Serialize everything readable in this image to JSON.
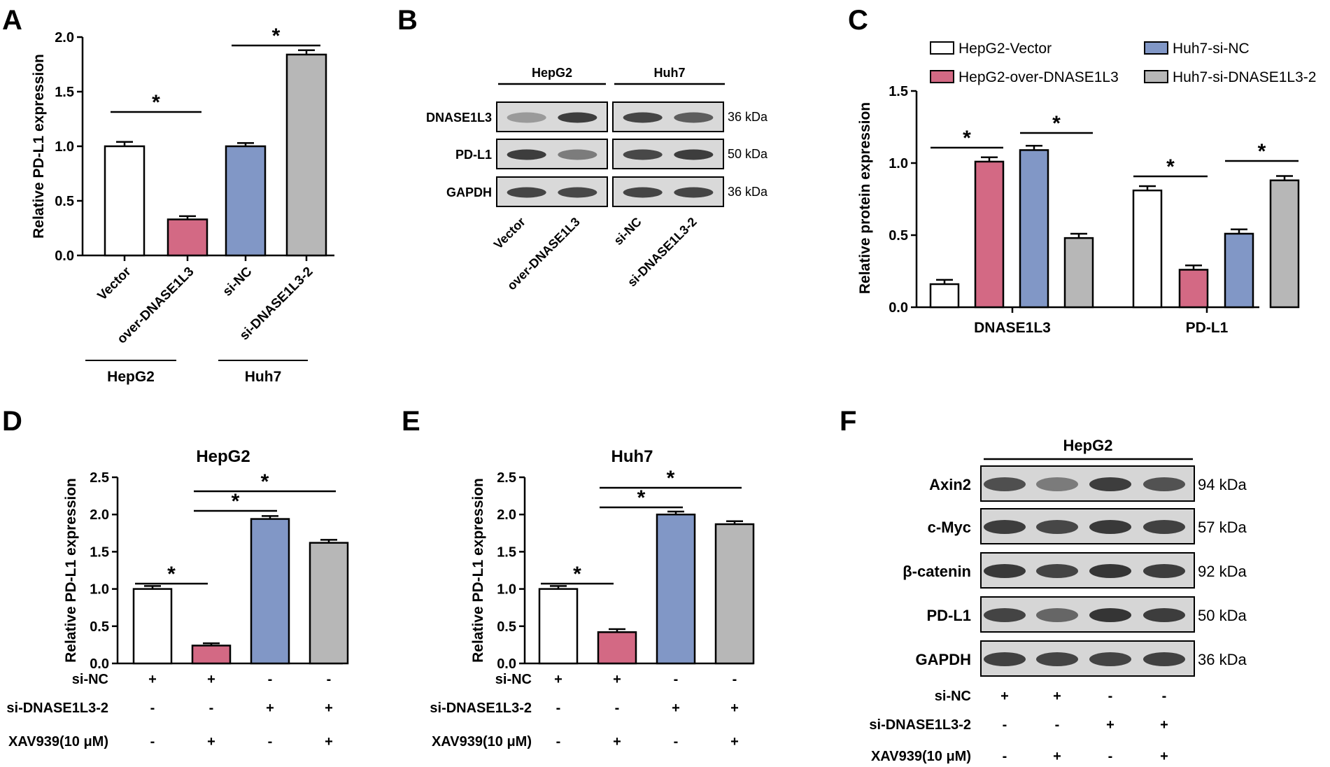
{
  "panel_labels": [
    "A",
    "B",
    "C",
    "D",
    "E",
    "F"
  ],
  "colors": {
    "white": "#ffffff",
    "pink": "#d36984",
    "blue": "#8197c6",
    "gray": "#b7b7b7"
  },
  "chart_data": [
    {
      "panel": "A",
      "type": "bar",
      "title": "",
      "ylabel": "Relative PD-L1 expression",
      "ylim": [
        0,
        2.0
      ],
      "yticks": [
        "0.0",
        "0.5",
        "1.0",
        "1.5",
        "2.0"
      ],
      "categories": [
        "Vector",
        "over-DNASE1L3",
        "si-NC",
        "si-DNASE1L3-2"
      ],
      "values": [
        1.0,
        0.33,
        1.0,
        1.84
      ],
      "errors": [
        0.04,
        0.03,
        0.03,
        0.04
      ],
      "bar_colors": [
        "white",
        "pink",
        "blue",
        "gray"
      ],
      "groups": [
        {
          "label": "HepG2",
          "span": [
            0,
            1
          ]
        },
        {
          "label": "Huh7",
          "span": [
            2,
            3
          ]
        }
      ],
      "significance": [
        {
          "from": 0,
          "to": 1,
          "label": "*"
        },
        {
          "from": 2,
          "to": 3,
          "label": "*"
        }
      ]
    },
    {
      "panel": "C",
      "type": "bar",
      "ylabel": "Relative protein expression",
      "ylim": [
        0,
        1.5
      ],
      "yticks": [
        "0.0",
        "0.5",
        "1.0",
        "1.5"
      ],
      "categories": [
        "DNASE1L3",
        "PD-L1"
      ],
      "series": [
        {
          "name": "HepG2-Vector",
          "color": "white",
          "values": [
            0.16,
            0.81
          ],
          "errors": [
            0.03,
            0.03
          ]
        },
        {
          "name": "HepG2-over-DNASE1L3",
          "color": "pink",
          "values": [
            1.01,
            0.26
          ],
          "errors": [
            0.03,
            0.03
          ]
        },
        {
          "name": "Huh7-si-NC",
          "color": "blue",
          "values": [
            1.09,
            0.51
          ],
          "errors": [
            0.03,
            0.03
          ]
        },
        {
          "name": "Huh7-si-DNASE1L3-2",
          "color": "gray",
          "values": [
            0.48,
            0.88
          ],
          "errors": [
            0.03,
            0.03
          ]
        }
      ],
      "legend_order": [
        0,
        2,
        1,
        3
      ],
      "legend_position": "top",
      "significance": [
        {
          "category": 0,
          "from": 0,
          "to": 1,
          "label": "*"
        },
        {
          "category": 0,
          "from": 2,
          "to": 3,
          "label": "*"
        },
        {
          "category": 1,
          "from": 0,
          "to": 1,
          "label": "*"
        },
        {
          "category": 1,
          "from": 2,
          "to": 3,
          "label": "*"
        }
      ]
    },
    {
      "panel": "D",
      "type": "bar",
      "title": "HepG2",
      "ylabel": "Relative PD-L1 expression",
      "ylim": [
        0,
        2.5
      ],
      "yticks": [
        "0.0",
        "0.5",
        "1.0",
        "1.5",
        "2.0",
        "2.5"
      ],
      "values": [
        1.0,
        0.24,
        1.94,
        1.62
      ],
      "errors": [
        0.04,
        0.03,
        0.04,
        0.04
      ],
      "bar_colors": [
        "white",
        "pink",
        "blue",
        "gray"
      ],
      "significance": [
        {
          "from": 0,
          "to": 1,
          "label": "*"
        },
        {
          "from": 1,
          "to": 2,
          "label": "*"
        },
        {
          "from": 1,
          "to": 3,
          "label": "*"
        }
      ],
      "conditions": [
        {
          "label": "si-NC",
          "signs": [
            "+",
            "+",
            "-",
            "-"
          ]
        },
        {
          "label": "si-DNASE1L3-2",
          "signs": [
            "-",
            "-",
            "+",
            "+"
          ]
        },
        {
          "label": "XAV939(10 μM)",
          "signs": [
            "-",
            "+",
            "-",
            "+"
          ]
        }
      ]
    },
    {
      "panel": "E",
      "type": "bar",
      "title": "Huh7",
      "ylabel": "Relative PD-L1 expression",
      "ylim": [
        0,
        2.5
      ],
      "yticks": [
        "0.0",
        "0.5",
        "1.0",
        "1.5",
        "2.0",
        "2.5"
      ],
      "values": [
        1.0,
        0.42,
        2.0,
        1.87
      ],
      "errors": [
        0.04,
        0.04,
        0.04,
        0.04
      ],
      "bar_colors": [
        "white",
        "pink",
        "blue",
        "gray"
      ],
      "significance": [
        {
          "from": 0,
          "to": 1,
          "label": "*"
        },
        {
          "from": 1,
          "to": 2,
          "label": "*"
        },
        {
          "from": 1,
          "to": 3,
          "label": "*"
        }
      ],
      "conditions": [
        {
          "label": "si-NC",
          "signs": [
            "+",
            "+",
            "-",
            "-"
          ]
        },
        {
          "label": "si-DNASE1L3-2",
          "signs": [
            "-",
            "-",
            "+",
            "+"
          ]
        },
        {
          "label": "XAV939(10 μM)",
          "signs": [
            "-",
            "+",
            "-",
            "+"
          ]
        }
      ]
    }
  ],
  "western_B": {
    "groups": [
      "HepG2",
      "Huh7"
    ],
    "rows": [
      {
        "label": "DNASE1L3",
        "kda": "36 kDa",
        "bands": [
          0.18,
          0.85,
          0.8,
          0.62
        ]
      },
      {
        "label": "PD-L1",
        "kda": "50 kDa",
        "bands": [
          0.85,
          0.4,
          0.78,
          0.85
        ]
      },
      {
        "label": "GAPDH",
        "kda": "36 kDa",
        "bands": [
          0.8,
          0.78,
          0.8,
          0.8
        ]
      }
    ],
    "lanes": [
      "Vector",
      "over-DNASE1L3",
      "si-NC",
      "si-DNASE1L3-2"
    ]
  },
  "western_F": {
    "title": "HepG2",
    "rows": [
      {
        "label": "Axin2",
        "kda": "94 kDa",
        "bands": [
          0.72,
          0.4,
          0.85,
          0.7
        ]
      },
      {
        "label": "c-Myc",
        "kda": "57 kDa",
        "bands": [
          0.85,
          0.78,
          0.88,
          0.82
        ]
      },
      {
        "label": "β-catenin",
        "kda": "92 kDa",
        "bands": [
          0.88,
          0.8,
          0.9,
          0.86
        ]
      },
      {
        "label": "PD-L1",
        "kda": "50 kDa",
        "bands": [
          0.8,
          0.55,
          0.9,
          0.85
        ]
      },
      {
        "label": "GAPDH",
        "kda": "36 kDa",
        "bands": [
          0.82,
          0.8,
          0.8,
          0.82
        ]
      }
    ],
    "conditions": [
      {
        "label": "si-NC",
        "signs": [
          "+",
          "+",
          "-",
          "-"
        ]
      },
      {
        "label": "si-DNASE1L3-2",
        "signs": [
          "-",
          "-",
          "+",
          "+"
        ]
      },
      {
        "label": "XAV939(10 μM)",
        "signs": [
          "-",
          "+",
          "-",
          "+"
        ]
      }
    ]
  }
}
